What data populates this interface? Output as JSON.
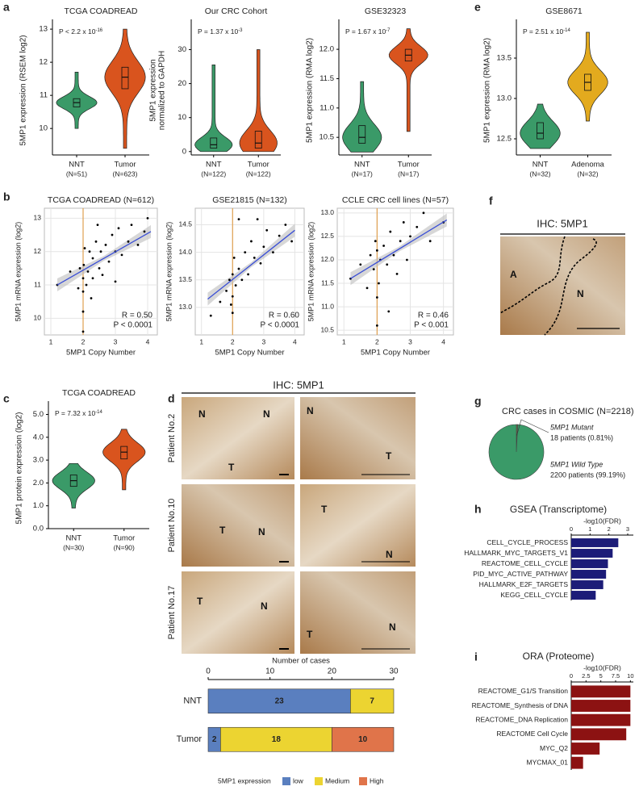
{
  "figure": {
    "panel_labels": [
      "a",
      "b",
      "c",
      "d",
      "e",
      "f",
      "g",
      "h",
      "i"
    ],
    "ihc_d": {
      "title": "IHC: 5MP1",
      "rows": [
        {
          "patient": "Patient No.2",
          "left": [
            "N",
            "N",
            "T"
          ],
          "right": [
            "N",
            "T"
          ]
        },
        {
          "patient": "Patient No.10",
          "left": [
            "T",
            "N"
          ],
          "right": [
            "T",
            "N"
          ]
        },
        {
          "patient": "Patient No.17",
          "left": [
            "T",
            "N"
          ],
          "right": [
            "T",
            "N"
          ]
        }
      ]
    },
    "ihc_f": {
      "title": "IHC: 5MP1",
      "labels": [
        "A",
        "N"
      ]
    }
  },
  "chart_data": [
    {
      "type": "violin",
      "title": "TCGA COADREAD",
      "ylabel": [
        "5MP1 expression (RSEM log2)"
      ],
      "annotation": {
        "text": "P < 2.2 x 10",
        "exponent": "-16"
      },
      "categories": [
        "NNT",
        "Tumor"
      ],
      "category_notes": [
        "(N=51)",
        "(N=623)"
      ],
      "colors": [
        "#3a9a68",
        "#d9541e"
      ],
      "stats": [
        {
          "min": 10.0,
          "q1": 10.65,
          "median": 10.78,
          "q3": 10.9,
          "max": 11.7
        },
        {
          "min": 9.4,
          "q1": 11.2,
          "median": 11.55,
          "q3": 11.85,
          "max": 13.0
        }
      ],
      "ylim": [
        9.2,
        13.1
      ],
      "yticks": [
        10,
        11,
        12,
        13
      ]
    },
    {
      "type": "violin",
      "title": "Our CRC Cohort",
      "ylabel": [
        "5MP1 expression",
        "normalized to GAPDH"
      ],
      "annotation": {
        "text": "P = 1.37 x 10",
        "exponent": "-3"
      },
      "categories": [
        "NNT",
        "Tumor"
      ],
      "category_notes": [
        "(N=122)",
        "(N=122)"
      ],
      "colors": [
        "#3a9a68",
        "#d9541e"
      ],
      "stats": [
        {
          "min": 0,
          "q1": 1,
          "median": 2,
          "q3": 4,
          "max": 25.5
        },
        {
          "min": 0,
          "q1": 1,
          "median": 2.5,
          "q3": 6,
          "max": 30
        }
      ],
      "ylim": [
        -1,
        37
      ],
      "yticks": [
        0,
        10,
        20,
        30
      ]
    },
    {
      "type": "violin",
      "title": "GSE32323",
      "ylabel": [
        "5MP1 expression (RMA log2)"
      ],
      "annotation": {
        "text": "P = 1.67 x 10",
        "exponent": "-7"
      },
      "categories": [
        "NNT",
        "Tumor"
      ],
      "category_notes": [
        "(N=17)",
        "(N=17)"
      ],
      "colors": [
        "#3a9a68",
        "#d9541e"
      ],
      "stats": [
        {
          "min": 10.25,
          "q1": 10.4,
          "median": 10.5,
          "q3": 10.7,
          "max": 11.45
        },
        {
          "min": 10.6,
          "q1": 11.8,
          "median": 11.9,
          "q3": 12.0,
          "max": 12.35
        }
      ],
      "ylim": [
        10.2,
        12.4
      ],
      "yticks": [
        10.5,
        {
          "value": 11,
          "label": "11.0"
        },
        11.5,
        {
          "value": 12,
          "label": "12.0"
        }
      ]
    },
    {
      "type": "violin",
      "title": "GSE8671",
      "ylabel": [
        "5MP1 expression (RMA log2)"
      ],
      "annotation": {
        "text": "P = 2.51 x 10",
        "exponent": "-14"
      },
      "categories": [
        "NNT",
        "Adenoma"
      ],
      "category_notes": [
        "(N=32)",
        "(N=32)"
      ],
      "colors": [
        "#3a9a68",
        "#e3aa1e"
      ],
      "stats": [
        {
          "min": 12.38,
          "q1": 12.5,
          "median": 12.57,
          "q3": 12.7,
          "max": 12.93
        },
        {
          "min": 12.72,
          "q1": 13.1,
          "median": 13.2,
          "q3": 13.3,
          "max": 13.82
        }
      ],
      "ylim": [
        12.3,
        13.9
      ],
      "yticks": [
        12.5,
        {
          "value": 13,
          "label": "13.0"
        },
        13.5
      ]
    },
    {
      "type": "scatter",
      "title": "TCGA COADREAD (N=612)",
      "xlabel": "5MP1 Copy Number",
      "ylabel": [
        "5MP1 mRNA expression  (log2)"
      ],
      "x": [
        2.0,
        2.0,
        2.0,
        2.0,
        2.02,
        2.05,
        2.1,
        2.15,
        2.2,
        2.3,
        2.3,
        2.4,
        2.5,
        2.55,
        2.6,
        2.7,
        2.8,
        2.9,
        3.0,
        3.1,
        3.2,
        3.4,
        3.5,
        3.7,
        3.9,
        4.0,
        1.9,
        1.85,
        1.6,
        1.2,
        2.25,
        2.45,
        3.0
      ],
      "y": [
        9.6,
        10.2,
        10.8,
        11.2,
        11.6,
        12.1,
        11.0,
        11.4,
        12.0,
        11.2,
        11.8,
        12.3,
        11.5,
        12.0,
        11.3,
        12.2,
        11.7,
        12.5,
        12.0,
        12.7,
        11.9,
        12.3,
        12.8,
        12.2,
        12.6,
        13.0,
        11.5,
        10.9,
        11.4,
        11.0,
        10.6,
        12.8,
        11.1
      ],
      "fit": {
        "x": [
          1.2,
          4.1
        ],
        "y": [
          11.0,
          12.6
        ]
      },
      "vline": 2,
      "annotations": [
        "R = 0.50",
        "P < 0.0001"
      ],
      "xlim": [
        0.8,
        4.3
      ],
      "xticks": [
        1,
        2,
        3,
        4
      ],
      "ylim": [
        9.5,
        13.3
      ],
      "yticks": [
        10,
        11,
        12,
        13
      ],
      "grid": true,
      "color": "#000000",
      "fit_color": "#3b4fd6",
      "vline_color": "#e0a050"
    },
    {
      "type": "scatter",
      "title": "GSE21815 (N=132)",
      "xlabel": "5MP1 Copy Number",
      "ylabel": [
        "5MP1 mRNA expression  (log2)"
      ],
      "x": [
        1.3,
        1.6,
        1.8,
        1.9,
        2.0,
        2.0,
        2.0,
        2.05,
        2.1,
        2.2,
        2.3,
        2.4,
        2.5,
        2.6,
        2.7,
        2.8,
        2.9,
        3.0,
        3.1,
        3.3,
        3.5,
        3.7,
        3.9,
        2.2,
        1.95
      ],
      "y": [
        12.85,
        13.1,
        13.3,
        13.5,
        13.2,
        13.6,
        12.9,
        13.9,
        13.4,
        13.7,
        13.5,
        14.0,
        13.6,
        14.2,
        13.9,
        14.6,
        13.8,
        14.1,
        14.4,
        14.0,
        14.3,
        14.5,
        14.2,
        14.6,
        13.05
      ],
      "fit": {
        "x": [
          1.2,
          4.0
        ],
        "y": [
          13.15,
          14.4
        ]
      },
      "vline": 2,
      "annotations": [
        "R = 0.60",
        "P < 0.0001"
      ],
      "xlim": [
        0.8,
        4.3
      ],
      "xticks": [
        1,
        2,
        3,
        4
      ],
      "ylim": [
        12.5,
        14.8
      ],
      "yticks": [
        {
          "value": 13,
          "label": "13.0"
        },
        13.5,
        {
          "value": 14,
          "label": "14.0"
        },
        14.5
      ],
      "grid": true,
      "color": "#000000",
      "fit_color": "#3b4fd6",
      "vline_color": "#e0a050"
    },
    {
      "type": "scatter",
      "title": "CCLE CRC cell lines (N=57)",
      "xlabel": "5MP1 Copy Number",
      "ylabel": [
        "5MP1 mRNA expression  (log2)"
      ],
      "x": [
        1.2,
        1.5,
        1.7,
        1.8,
        1.9,
        1.95,
        2.0,
        2.0,
        2.0,
        2.05,
        2.1,
        2.2,
        2.3,
        2.4,
        2.5,
        2.6,
        2.7,
        2.8,
        2.9,
        3.0,
        3.2,
        3.4,
        3.6,
        4.0,
        2.35
      ],
      "y": [
        11.6,
        11.9,
        11.4,
        12.1,
        11.8,
        12.4,
        10.6,
        11.2,
        12.2,
        11.5,
        12.0,
        12.3,
        11.9,
        12.6,
        12.1,
        11.7,
        12.4,
        12.8,
        12.0,
        12.5,
        12.7,
        13.0,
        12.4,
        12.8,
        10.9
      ],
      "fit": {
        "x": [
          1.2,
          4.1
        ],
        "y": [
          11.6,
          12.85
        ]
      },
      "vline": 2,
      "annotations": [
        "R = 0.46",
        "P < 0.001"
      ],
      "xlim": [
        0.8,
        4.3
      ],
      "xticks": [
        1,
        2,
        3,
        4
      ],
      "ylim": [
        10.4,
        13.1
      ],
      "yticks": [
        10.5,
        {
          "value": 11,
          "label": "11.0"
        },
        11.5,
        {
          "value": 12,
          "label": "12.0"
        },
        12.5,
        {
          "value": 13,
          "label": "13.0"
        }
      ],
      "grid": true,
      "color": "#000000",
      "fit_color": "#3b4fd6",
      "vline_color": "#e0a050"
    },
    {
      "type": "violin",
      "title": "TCGA COADREAD",
      "ylabel": [
        "5MP1 protein expression (log2)"
      ],
      "annotation": {
        "text": "P = 7.32 x 10",
        "exponent": "-14"
      },
      "categories": [
        "NNT",
        "Tumor"
      ],
      "category_notes": [
        "(N=30)",
        "(N=90)"
      ],
      "colors": [
        "#3a9a68",
        "#d9541e"
      ],
      "stats": [
        {
          "min": 0.9,
          "q1": 1.85,
          "median": 2.1,
          "q3": 2.35,
          "max": 2.85
        },
        {
          "min": 1.7,
          "q1": 3.05,
          "median": 3.35,
          "q3": 3.6,
          "max": 4.35
        }
      ],
      "ylim": [
        0,
        5.3
      ],
      "yticks": [
        {
          "value": 0,
          "label": "0.0"
        },
        {
          "value": 1,
          "label": "1.0"
        },
        {
          "value": 2,
          "label": "2.0"
        },
        {
          "value": 3,
          "label": "3.0"
        },
        {
          "value": 4,
          "label": "4.0"
        },
        {
          "value": 5,
          "label": "5.0"
        }
      ]
    },
    {
      "type": "stacked_hbar",
      "xlabel": "Number of cases",
      "categories": [
        "NNT",
        "Tumor"
      ],
      "series": [
        {
          "name": "low",
          "color": "#5a7fbf",
          "values": [
            23,
            2
          ]
        },
        {
          "name": "Medium",
          "color": "#ecd431",
          "values": [
            7,
            18
          ]
        },
        {
          "name": "High",
          "color": "#e0744a",
          "values": [
            0,
            10
          ]
        }
      ],
      "legend_title": "5MP1 expression",
      "xlim": [
        0,
        30
      ],
      "xticks": [
        0,
        10,
        20,
        30
      ]
    },
    {
      "type": "pie",
      "title": "CRC cases in COSMIC (N=2218)",
      "categories": [
        "5MP1 Mutant",
        "5MP1 Wild Type"
      ],
      "values": [
        18,
        2200
      ],
      "value_labels": [
        "18 patients (0.81%)",
        "2200 patients (99.19%)"
      ],
      "colors": [
        "#7a6a4a",
        "#3a9a68"
      ],
      "label_colors": [
        "#c0281e",
        "#2e2e9a"
      ]
    },
    {
      "type": "hbar",
      "title": "GSEA (Transcriptome)",
      "xlabel": "-log10(FDR)",
      "categories": [
        "CELL_CYCLE_PROCESS",
        "HALLMARK_MYC_TARGETS_V1",
        "REACTOME_CELL_CYCLE",
        "PID_MYC_ACTIVE_PATHWAY",
        "HALLMARK_E2F_TARGETS",
        "KEGG_CELL_CYCLE"
      ],
      "values": [
        2.5,
        2.2,
        1.95,
        1.85,
        1.7,
        1.3
      ],
      "color": "#1c1c78",
      "xlim": [
        0,
        3.3
      ],
      "xticks": [
        0,
        1,
        2,
        3
      ]
    },
    {
      "type": "hbar",
      "title": "ORA (Proteome)",
      "xlabel": "-log10(FDR)",
      "categories": [
        "REACTOME_G1/S Transition",
        "REACTOME_Synthesis of DNA",
        "REACTOME_DNA Replication",
        "REACTOME Cell Cycle",
        "MYC_Q2",
        "MYCMAX_01"
      ],
      "values": [
        10,
        10,
        10,
        9.3,
        4.8,
        2.0
      ],
      "color": "#8c1212",
      "xlim": [
        0,
        10.5
      ],
      "xticks": [
        0,
        2.5,
        5,
        7.5,
        10
      ]
    }
  ]
}
